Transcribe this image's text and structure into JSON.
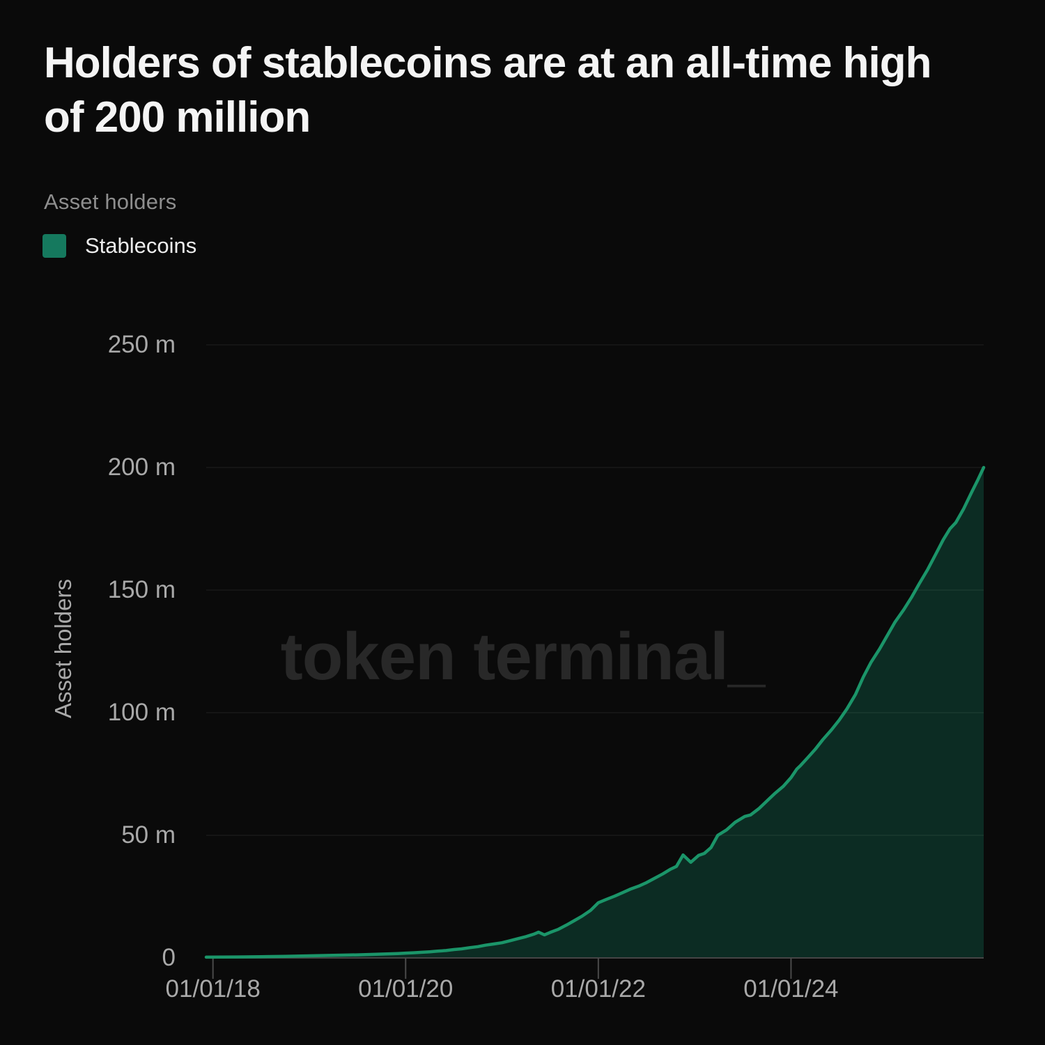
{
  "header": {
    "title_line1": "Holders of stablecoins are at an all-time high",
    "title_line2": "of 200 million",
    "section_label": "Asset holders"
  },
  "legend": {
    "items": [
      {
        "label": "Stablecoins",
        "color": "#15795e"
      }
    ]
  },
  "watermark": "token terminal_",
  "colors": {
    "background": "#0a0a0a",
    "grid": "rgba(255,255,255,0.09)",
    "axis": "#454545",
    "tick_mark": "#4a4a4a",
    "tick_text": "#a9a9a9",
    "title_text": "#f4f4f4",
    "section_label_text": "#8e8e8e",
    "legend_text": "#ececec",
    "watermark_text": "#282828",
    "line": "#1b9569",
    "fill": "#0c2c23"
  },
  "chart_data": {
    "type": "area",
    "title": "Holders of stablecoins are at an all-time high of 200 million",
    "xlabel": "",
    "ylabel": "Asset holders",
    "unit_label": "m",
    "grid": "horizontal",
    "legend_position": "top-left",
    "x_domain": [
      2017.93,
      2026.0
    ],
    "y_domain": [
      0,
      250
    ],
    "x_ticks": [
      {
        "v": 2018,
        "label": "01/01/18"
      },
      {
        "v": 2020,
        "label": "01/01/20"
      },
      {
        "v": 2022,
        "label": "01/01/22"
      },
      {
        "v": 2024,
        "label": "01/01/24"
      }
    ],
    "y_ticks": [
      {
        "v": 0,
        "label": "0"
      },
      {
        "v": 50,
        "label": "50 m"
      },
      {
        "v": 100,
        "label": "100 m"
      },
      {
        "v": 150,
        "label": "150 m"
      },
      {
        "v": 200,
        "label": "200 m"
      },
      {
        "v": 250,
        "label": "250 m"
      }
    ],
    "series": [
      {
        "name": "Stablecoins",
        "stroke": "#1b9569",
        "fill": "#0c2c23",
        "points": [
          [
            2017.93,
            0.3
          ],
          [
            2018.25,
            0.4
          ],
          [
            2018.5,
            0.5
          ],
          [
            2018.75,
            0.65
          ],
          [
            2019.0,
            0.85
          ],
          [
            2019.25,
            1.05
          ],
          [
            2019.5,
            1.25
          ],
          [
            2019.75,
            1.55
          ],
          [
            2019.92,
            1.8
          ],
          [
            2020.0,
            1.95
          ],
          [
            2020.08,
            2.1
          ],
          [
            2020.17,
            2.3
          ],
          [
            2020.25,
            2.5
          ],
          [
            2020.33,
            2.75
          ],
          [
            2020.42,
            3.0
          ],
          [
            2020.5,
            3.4
          ],
          [
            2020.58,
            3.7
          ],
          [
            2020.67,
            4.2
          ],
          [
            2020.75,
            4.6
          ],
          [
            2020.83,
            5.2
          ],
          [
            2020.92,
            5.7
          ],
          [
            2021.0,
            6.2
          ],
          [
            2021.08,
            7.0
          ],
          [
            2021.17,
            7.9
          ],
          [
            2021.25,
            8.7
          ],
          [
            2021.33,
            9.7
          ],
          [
            2021.38,
            10.5
          ],
          [
            2021.44,
            9.4
          ],
          [
            2021.5,
            10.4
          ],
          [
            2021.58,
            11.6
          ],
          [
            2021.67,
            13.4
          ],
          [
            2021.75,
            15.2
          ],
          [
            2021.83,
            17.0
          ],
          [
            2021.92,
            19.4
          ],
          [
            2022.0,
            22.5
          ],
          [
            2022.08,
            23.8
          ],
          [
            2022.17,
            25.2
          ],
          [
            2022.25,
            26.6
          ],
          [
            2022.33,
            28.0
          ],
          [
            2022.42,
            29.3
          ],
          [
            2022.5,
            30.7
          ],
          [
            2022.58,
            32.4
          ],
          [
            2022.67,
            34.3
          ],
          [
            2022.75,
            36.2
          ],
          [
            2022.81,
            37.3
          ],
          [
            2022.88,
            42.0
          ],
          [
            2022.96,
            39.0
          ],
          [
            2023.04,
            41.8
          ],
          [
            2023.1,
            42.6
          ],
          [
            2023.17,
            45.0
          ],
          [
            2023.24,
            50.0
          ],
          [
            2023.33,
            52.2
          ],
          [
            2023.42,
            55.3
          ],
          [
            2023.52,
            57.7
          ],
          [
            2023.58,
            58.3
          ],
          [
            2023.67,
            61.0
          ],
          [
            2023.75,
            64.0
          ],
          [
            2023.83,
            67.0
          ],
          [
            2023.92,
            70.0
          ],
          [
            2024.0,
            73.5
          ],
          [
            2024.06,
            77.0
          ],
          [
            2024.1,
            78.5
          ],
          [
            2024.17,
            81.5
          ],
          [
            2024.25,
            85.0
          ],
          [
            2024.33,
            89.0
          ],
          [
            2024.42,
            93.0
          ],
          [
            2024.5,
            97.0
          ],
          [
            2024.58,
            101.5
          ],
          [
            2024.67,
            107.5
          ],
          [
            2024.75,
            114.5
          ],
          [
            2024.83,
            120.5
          ],
          [
            2024.92,
            126.0
          ],
          [
            2025.0,
            131.5
          ],
          [
            2025.08,
            137.0
          ],
          [
            2025.17,
            142.0
          ],
          [
            2025.25,
            147.0
          ],
          [
            2025.33,
            152.5
          ],
          [
            2025.42,
            158.5
          ],
          [
            2025.5,
            164.5
          ],
          [
            2025.58,
            170.5
          ],
          [
            2025.65,
            175.0
          ],
          [
            2025.71,
            177.5
          ],
          [
            2025.79,
            183.0
          ],
          [
            2025.87,
            189.5
          ],
          [
            2025.94,
            195.0
          ],
          [
            2026.0,
            200.0
          ]
        ]
      }
    ]
  }
}
